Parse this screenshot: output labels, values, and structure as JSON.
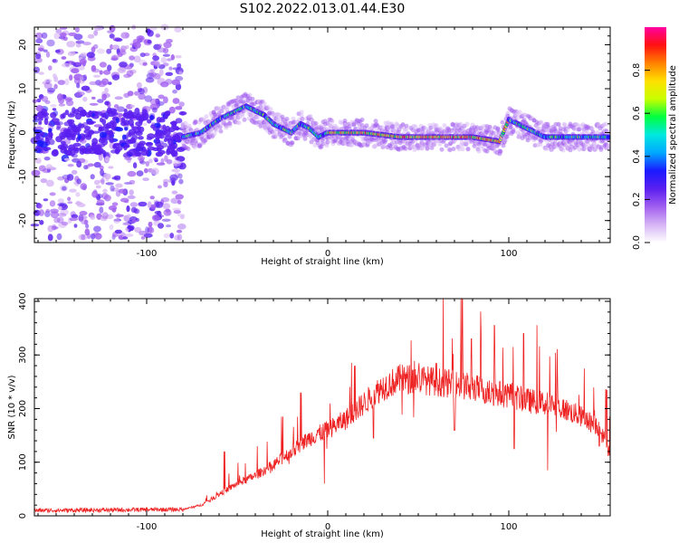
{
  "title": "S102.2022.013.01.44.E30",
  "chart_data": [
    {
      "type": "heatmap",
      "xlabel": "Height of straight line (km)",
      "ylabel": "Frequency (Hz)",
      "xlim": [
        -162,
        156
      ],
      "ylim": [
        -25,
        24
      ],
      "xticks": [
        -100,
        0,
        100
      ],
      "xtick_labels": [
        "-100",
        "0",
        "100"
      ],
      "yticks": [
        -20,
        -10,
        0,
        10,
        20
      ],
      "ytick_labels": [
        "-20",
        "-10",
        "0",
        "10",
        "20"
      ],
      "colorbar": {
        "label": "Normalized spectral amplitude",
        "range": [
          0,
          1
        ],
        "ticks": [
          0.0,
          0.2,
          0.4,
          0.6,
          0.8
        ],
        "tick_labels": [
          "0.0",
          "0.2",
          "0.4",
          "0.6",
          "0.8"
        ],
        "colormap": [
          "#ffffff",
          "#d6b4f5",
          "#a15ef0",
          "#5a1ff0",
          "#1a1aff",
          "#00a8ff",
          "#00e8e0",
          "#00ff40",
          "#c8ff00",
          "#ffe000",
          "#ff8000",
          "#ff1010",
          "#ff00a0"
        ]
      },
      "ridge": {
        "x": [
          -80,
          -70,
          -60,
          -50,
          -45,
          -40,
          -35,
          -30,
          -25,
          -20,
          -15,
          -10,
          -5,
          0,
          10,
          20,
          40,
          60,
          80,
          95,
          100,
          120,
          140,
          155
        ],
        "freq": [
          -1,
          0,
          3,
          5,
          6,
          5,
          4,
          2,
          1,
          0,
          2,
          1,
          -1,
          0,
          0,
          0,
          -1,
          -1,
          -1,
          -2,
          3,
          -1,
          -1,
          -1
        ]
      }
    },
    {
      "type": "line",
      "xlabel": "Height of straight line (km)",
      "ylabel": "SNR (10 * v/v)",
      "xlim": [
        -162,
        156
      ],
      "ylim": [
        0,
        405
      ],
      "xticks": [
        -100,
        0,
        100
      ],
      "xtick_labels": [
        "-100",
        "0",
        "100"
      ],
      "yticks": [
        0,
        100,
        200,
        300,
        400
      ],
      "ytick_labels": [
        "0",
        "100",
        "200",
        "300",
        "400"
      ],
      "line_color": "#ee2222",
      "envelope": {
        "x": [
          -162,
          -120,
          -80,
          -70,
          -60,
          -50,
          -40,
          -30,
          -20,
          -10,
          0,
          10,
          20,
          30,
          40,
          50,
          60,
          70,
          80,
          90,
          100,
          110,
          120,
          130,
          140,
          150,
          156
        ],
        "y": [
          10,
          11,
          12,
          20,
          40,
          60,
          75,
          95,
          120,
          145,
          160,
          180,
          210,
          240,
          255,
          255,
          250,
          245,
          240,
          230,
          225,
          215,
          210,
          200,
          185,
          165,
          115
        ]
      },
      "spikes": [
        {
          "x": -57,
          "y": 120
        },
        {
          "x": -39,
          "y": 130
        },
        {
          "x": -31,
          "y": 165
        },
        {
          "x": -25,
          "y": 185
        },
        {
          "x": -15,
          "y": 230
        },
        {
          "x": -6,
          "y": 240
        },
        {
          "x": 15,
          "y": 280
        },
        {
          "x": 60,
          "y": 285
        },
        {
          "x": 70,
          "y": 350
        },
        {
          "x": 74,
          "y": 410
        },
        {
          "x": 79,
          "y": 330
        },
        {
          "x": 85,
          "y": 340
        },
        {
          "x": 92,
          "y": 355
        },
        {
          "x": 99,
          "y": 390
        },
        {
          "x": 103,
          "y": 375
        },
        {
          "x": 108,
          "y": 340
        },
        {
          "x": 154,
          "y": 235
        }
      ],
      "dips": [
        {
          "x": -2,
          "y": 60
        },
        {
          "x": 25,
          "y": 145
        },
        {
          "x": 70,
          "y": 160
        },
        {
          "x": 89,
          "y": 150
        },
        {
          "x": 103,
          "y": 125
        },
        {
          "x": 121,
          "y": 85
        },
        {
          "x": 150,
          "y": 130
        }
      ]
    }
  ]
}
